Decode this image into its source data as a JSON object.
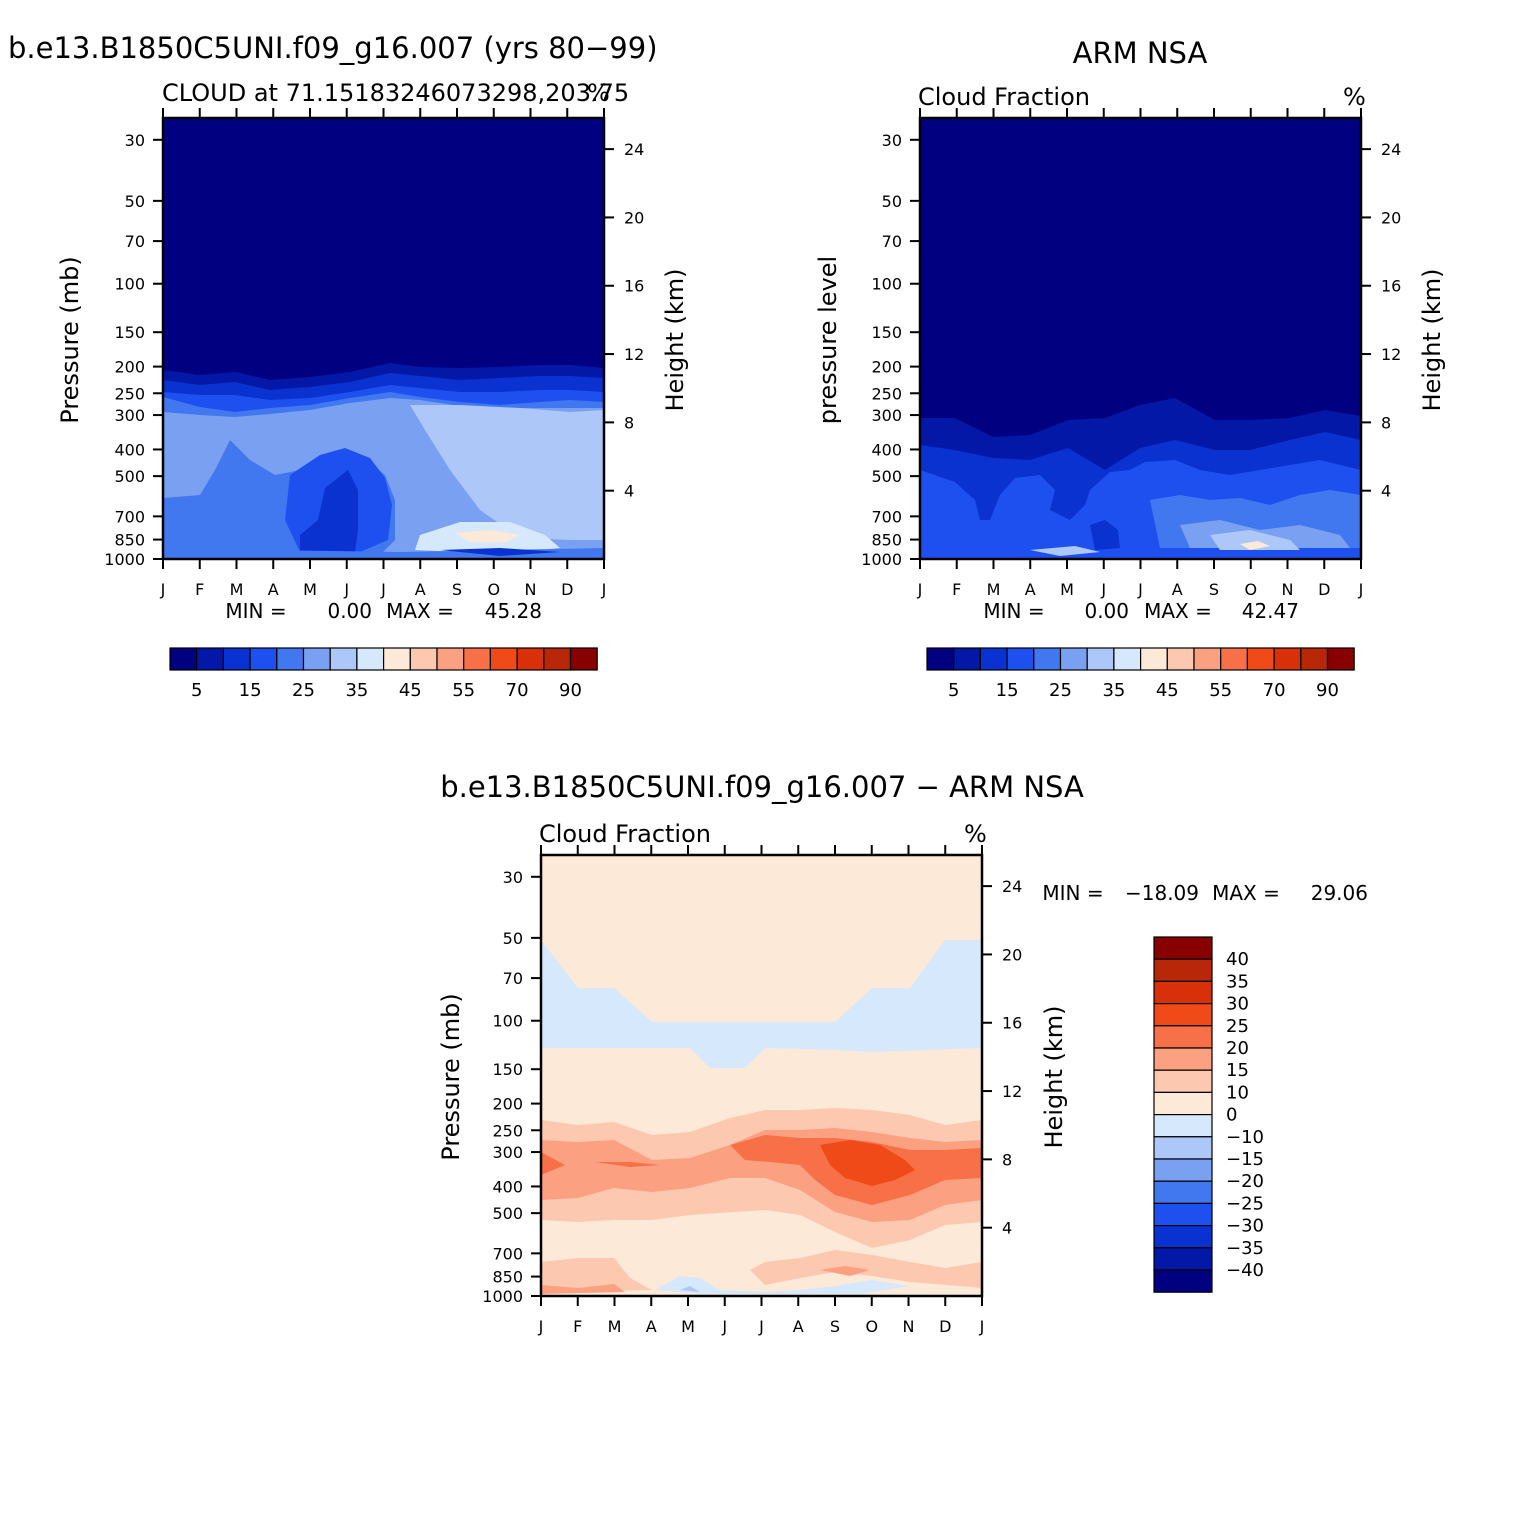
{
  "chart_data": [
    {
      "type": "heatmap",
      "title": "b.e13.B1850C5UNI.f09_g16.007 (yrs 80−99)",
      "subtitle_left": "CLOUD at 71.15183246073298,203.75",
      "subtitle_right": "%",
      "ylabel": "Pressure (mb)",
      "ylabel_right": "Height (km)",
      "x_ticks": [
        "J",
        "F",
        "M",
        "A",
        "M",
        "J",
        "J",
        "A",
        "S",
        "O",
        "N",
        "D",
        "J"
      ],
      "y_ticks": [
        30,
        50,
        70,
        100,
        150,
        200,
        250,
        300,
        400,
        500,
        700,
        850,
        1000
      ],
      "y2_ticks": [
        24,
        20,
        16,
        12,
        8,
        4
      ],
      "ylim": [
        1000,
        25
      ],
      "y_scale": "log",
      "min_label": "MIN =",
      "min_value": "0.00",
      "max_label": "MAX =",
      "max_value": "45.28",
      "levels": [
        5,
        10,
        15,
        20,
        25,
        30,
        35,
        40,
        45,
        50,
        55,
        60,
        70,
        80,
        90
      ],
      "level_labels": [
        "5",
        "15",
        "25",
        "35",
        "45",
        "55",
        "70",
        "90"
      ],
      "colors": [
        "#000080",
        "#0418a8",
        "#0a32d0",
        "#1e50f0",
        "#4178f0",
        "#7aa0f2",
        "#adc8f8",
        "#d6e8fc",
        "#fde9d8",
        "#fdc8b0",
        "#fba080",
        "#f87048",
        "#f04a18",
        "#d83008",
        "#b82808",
        "#880000"
      ],
      "cloud_top_pressure": [
        210,
        220,
        215,
        230,
        225,
        215,
        205,
        210,
        215,
        215,
        210,
        210,
        210
      ],
      "mid_level_max_pct": [
        25,
        25,
        24,
        20,
        15,
        12,
        20,
        35,
        38,
        40,
        35,
        30,
        25
      ],
      "low_level_max_pct": [
        20,
        22,
        22,
        18,
        12,
        10,
        18,
        30,
        40,
        45,
        38,
        30,
        20
      ]
    },
    {
      "type": "heatmap",
      "title": "ARM NSA",
      "subtitle_left": "Cloud Fraction",
      "subtitle_right": "%",
      "ylabel": "pressure level",
      "ylabel_right": "Height (km)",
      "x_ticks": [
        "J",
        "F",
        "M",
        "A",
        "M",
        "J",
        "J",
        "A",
        "S",
        "O",
        "N",
        "D",
        "J"
      ],
      "y_ticks": [
        30,
        50,
        70,
        100,
        150,
        200,
        250,
        300,
        400,
        500,
        700,
        850,
        1000
      ],
      "y2_ticks": [
        24,
        20,
        16,
        12,
        8,
        4
      ],
      "ylim": [
        1000,
        25
      ],
      "y_scale": "log",
      "min_label": "MIN =",
      "min_value": "0.00",
      "max_label": "MAX =",
      "max_value": "42.47",
      "levels": [
        5,
        10,
        15,
        20,
        25,
        30,
        35,
        40,
        45,
        50,
        55,
        60,
        70,
        80,
        90
      ],
      "level_labels": [
        "5",
        "15",
        "25",
        "35",
        "45",
        "55",
        "70",
        "90"
      ],
      "colors": [
        "#000080",
        "#0418a8",
        "#0a32d0",
        "#1e50f0",
        "#4178f0",
        "#7aa0f2",
        "#adc8f8",
        "#d6e8fc",
        "#fde9d8",
        "#fdc8b0",
        "#fba080",
        "#f87048",
        "#f04a18",
        "#d83008",
        "#b82808",
        "#880000"
      ],
      "cloud_top_pressure": [
        300,
        330,
        370,
        360,
        310,
        290,
        270,
        250,
        290,
        310,
        300,
        290,
        300
      ],
      "mid_level_max_pct": [
        15,
        15,
        12,
        12,
        12,
        10,
        12,
        15,
        15,
        15,
        15,
        15,
        15
      ],
      "low_level_max_pct": [
        15,
        18,
        15,
        12,
        25,
        12,
        15,
        30,
        35,
        42,
        35,
        25,
        15
      ]
    },
    {
      "type": "heatmap",
      "title": "b.e13.B1850C5UNI.f09_g16.007 − ARM NSA",
      "subtitle_left": "Cloud Fraction",
      "subtitle_right": "%",
      "ylabel": "Pressure (mb)",
      "ylabel_right": "Height (km)",
      "x_ticks": [
        "J",
        "F",
        "M",
        "A",
        "M",
        "J",
        "J",
        "A",
        "S",
        "O",
        "N",
        "D",
        "J"
      ],
      "y_ticks": [
        30,
        50,
        70,
        100,
        150,
        200,
        250,
        300,
        400,
        500,
        700,
        850,
        1000
      ],
      "y2_ticks": [
        24,
        20,
        16,
        12,
        8,
        4
      ],
      "ylim": [
        1000,
        25
      ],
      "y_scale": "log",
      "min_label": "MIN =",
      "min_value": "−18.09",
      "max_label": "MAX =",
      "max_value": "29.06",
      "levels": [
        -40,
        -35,
        -30,
        -25,
        -20,
        -15,
        -10,
        0,
        10,
        15,
        20,
        25,
        30,
        35,
        40
      ],
      "level_labels": [
        "40",
        "35",
        "30",
        "25",
        "20",
        "15",
        "10",
        "0",
        "−10",
        "−15",
        "−20",
        "−25",
        "−30",
        "−35",
        "−40"
      ],
      "colors": [
        "#000080",
        "#0418a8",
        "#0a32d0",
        "#1e50f0",
        "#4178f0",
        "#7aa0f2",
        "#adc8f8",
        "#d6e8fc",
        "#fde9d8",
        "#fdc8b0",
        "#fba080",
        "#f87048",
        "#f04a18",
        "#d83008",
        "#b82808",
        "#880000"
      ],
      "peak_band_pressure": 330,
      "peak_band_max_pct": [
        20,
        15,
        15,
        12,
        12,
        12,
        20,
        25,
        29,
        29,
        25,
        15,
        20
      ]
    }
  ]
}
